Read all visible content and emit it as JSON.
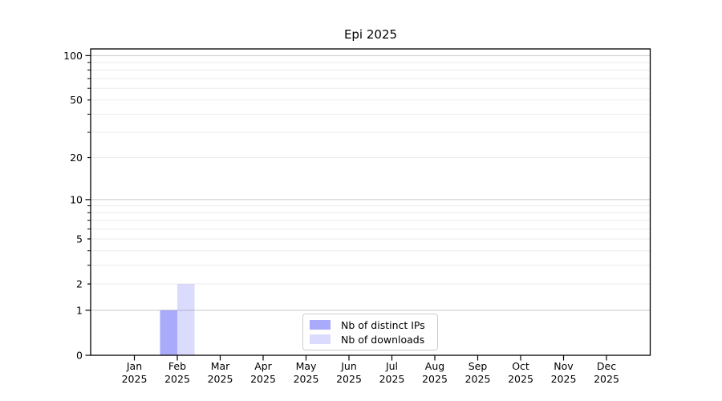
{
  "chart_data": {
    "type": "bar",
    "title": "Epi 2025",
    "categories": [
      "Jan",
      "Feb",
      "Mar",
      "Apr",
      "May",
      "Jun",
      "Jul",
      "Aug",
      "Sep",
      "Oct",
      "Nov",
      "Dec"
    ],
    "year_label": "2025",
    "series": [
      {
        "name": "Nb of distinct IPs",
        "values": [
          0,
          1,
          0,
          0,
          0,
          0,
          0,
          0,
          0,
          0,
          0,
          0
        ],
        "color": "rgba(92,92,245,0.52)"
      },
      {
        "name": "Nb of downloads",
        "values": [
          0,
          2,
          0,
          0,
          0,
          0,
          0,
          0,
          0,
          0,
          0,
          0
        ],
        "color": "rgba(92,92,245,0.22)"
      }
    ],
    "scale": "log1p",
    "ylim": [
      0,
      111
    ],
    "y_labeled_ticks": [
      0,
      1,
      2,
      5,
      10,
      20,
      50,
      100
    ],
    "y_major_gridlines": [
      1,
      10,
      100
    ],
    "y_minor_gridlines": [
      2,
      3,
      4,
      5,
      6,
      7,
      8,
      9,
      20,
      30,
      40,
      50,
      60,
      70,
      80,
      90
    ],
    "grid": true,
    "legend_position": "lower center",
    "colors": {
      "spine": "#000000",
      "tick_label": "#000000",
      "major_grid": "#c6c6c6",
      "minor_grid": "#ebebeb",
      "legend_border": "#cccccc"
    }
  }
}
